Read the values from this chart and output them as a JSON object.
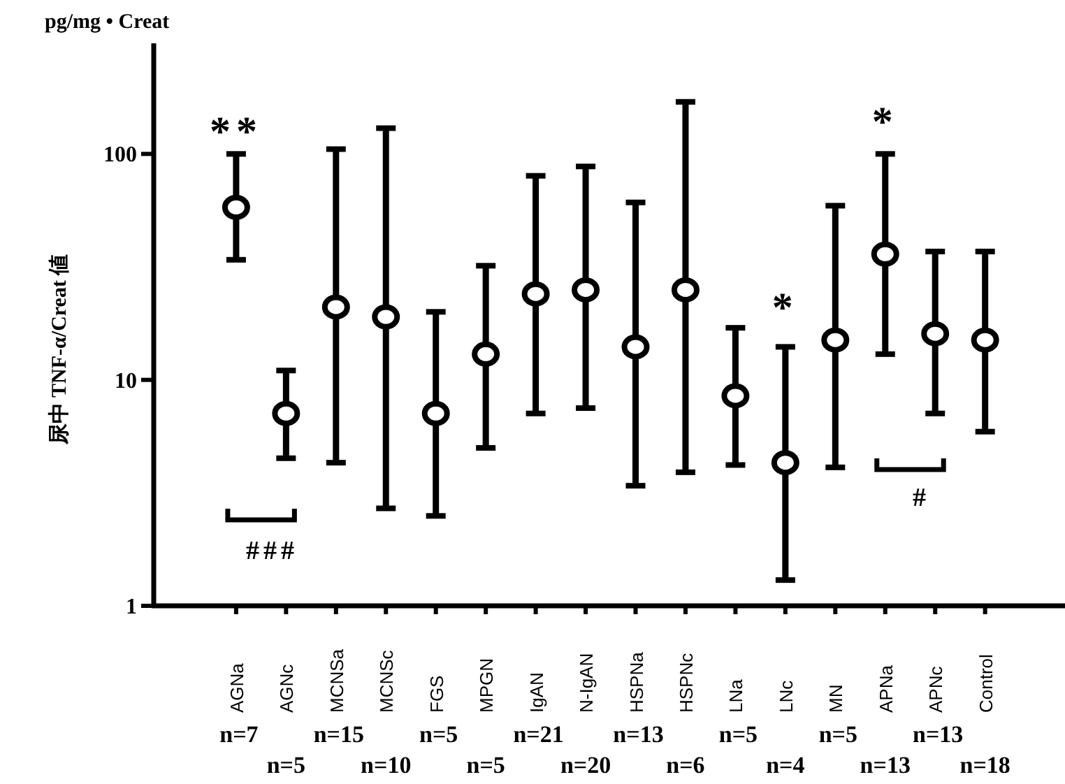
{
  "chart_data": {
    "type": "scatter",
    "ylabel": "尿中 TNF-α/Creat 値",
    "categories": [
      "AGNa",
      "AGNc",
      "MCNSa",
      "MCNSc",
      "FGS",
      "MPGN",
      "IgAN",
      "N-IgAN",
      "HSPNa",
      "HSPNc",
      "LNa",
      "LNc",
      "MN",
      "APNa",
      "APNc",
      "Control"
    ],
    "values": [
      58,
      7.1,
      21,
      19,
      7.1,
      13,
      24,
      25,
      14,
      25,
      8.5,
      4.3,
      15,
      36,
      16,
      15
    ],
    "errors": [
      [
        34,
        100
      ],
      [
        4.5,
        11
      ],
      [
        4.3,
        105
      ],
      [
        2.7,
        130
      ],
      [
        2.5,
        20
      ],
      [
        5.0,
        32
      ],
      [
        7.1,
        80
      ],
      [
        7.5,
        88
      ],
      [
        3.4,
        61
      ],
      [
        3.9,
        170
      ],
      [
        4.2,
        17
      ],
      [
        1.3,
        14
      ],
      [
        4.1,
        59
      ],
      [
        13,
        100
      ],
      [
        7.1,
        37
      ],
      [
        5.9,
        37
      ]
    ],
    "color": "#000000",
    "marker": "circle",
    "log": "y",
    "ylim": [
      1,
      300
    ],
    "yticks": [
      1,
      10,
      100
    ],
    "grid": false,
    "annotations": [
      "pg/mg • Creat",
      "**",
      "###",
      "*",
      "*",
      "#",
      "n=7",
      "n=5",
      "n=15",
      "n=10",
      "n=5",
      "n=5",
      "n=21",
      "n=20",
      "n=13",
      "n=6",
      "n=5",
      "n=4",
      "n=5",
      "n=13",
      "n=13",
      "n=18"
    ]
  }
}
